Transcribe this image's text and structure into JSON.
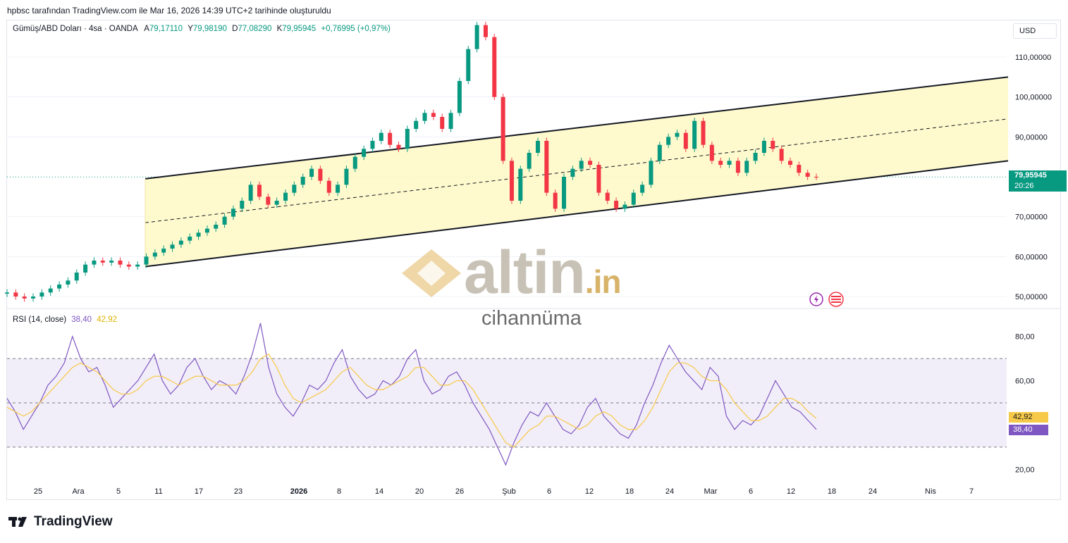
{
  "header": {
    "text": "hpbsc tarafından TradingView.com ile Mar 16, 2026 14:39 UTC+2 tarihinde oluşturuldu"
  },
  "legend": {
    "symbol": "Gümüş/ABD Doları · 4sa · OANDA",
    "a_label": "A",
    "a_val": "79,17110",
    "y_label": "Y",
    "y_val": "79,98190",
    "d_label": "D",
    "d_val": "77,08290",
    "k_label": "K",
    "k_val": "79,95945",
    "change": "+0,76995 (+0,97%)"
  },
  "currency": "USD",
  "last_price": {
    "value": "79,95945",
    "countdown": "20:26",
    "color": "#089981"
  },
  "rsi_legend": {
    "label": "RSI (14, close)",
    "rsi": "38,40",
    "ma": "42,92"
  },
  "rsi_badges": {
    "ma": "42,92",
    "rsi": "38,40",
    "ma_color": "#f7c948",
    "rsi_color": "#7e57c2"
  },
  "watermark": {
    "main": "altin",
    "suffix": ".in",
    "sub": "cihannüma"
  },
  "footer": {
    "brand": "TradingView"
  },
  "chart_data": [
    {
      "type": "candlestick",
      "title": "Gümüş/ABD Doları · 4sa · OANDA",
      "ylim": [
        47,
        119
      ],
      "y_ticks": [
        "110,00000",
        "100,00000",
        "90,00000",
        "70,00000",
        "60,00000",
        "50,00000"
      ],
      "y_tick_values": [
        110,
        100,
        90,
        70,
        60,
        50
      ],
      "x_ticks": [
        "25",
        "Ara",
        "5",
        "11",
        "17",
        "23",
        "2026",
        "8",
        "14",
        "20",
        "26",
        "Şub",
        "6",
        "12",
        "18",
        "24",
        "Mar",
        "6",
        "12",
        "18",
        "24",
        "Nis",
        "7"
      ],
      "series": [
        {
          "name": "Close (approx.)",
          "x_index": [
            0,
            6,
            12,
            18,
            24,
            30,
            36,
            42,
            48,
            54,
            60,
            66,
            72,
            78,
            84,
            90,
            96,
            102,
            108,
            114,
            120,
            126,
            132,
            138,
            144,
            150,
            156,
            162,
            168,
            174,
            180,
            186,
            192,
            198,
            204,
            210,
            216,
            222,
            228,
            234,
            240,
            246,
            252,
            258,
            264,
            270,
            276,
            282,
            288,
            294,
            300,
            306,
            312,
            318,
            324,
            330,
            336,
            342,
            348,
            354,
            360,
            366,
            372,
            378,
            384,
            390,
            396,
            402,
            408,
            414,
            420,
            426,
            432,
            438,
            444,
            450,
            456,
            462,
            468,
            474,
            480,
            486,
            492,
            498,
            504,
            510,
            516,
            522,
            528,
            534,
            540,
            546,
            552,
            558
          ],
          "values": [
            51,
            50,
            49.5,
            50,
            51,
            52,
            53,
            54,
            56,
            58,
            59,
            58.5,
            59,
            58,
            57.5,
            58,
            60,
            61,
            62,
            63,
            64,
            65,
            66,
            67,
            68,
            70,
            72,
            74,
            78,
            75,
            73,
            74,
            76,
            78,
            80,
            82,
            79,
            76,
            78,
            82,
            85,
            87,
            89,
            91,
            88,
            87,
            92,
            94,
            96,
            95,
            92,
            96,
            104,
            112,
            118,
            115,
            100,
            84,
            74,
            82,
            86,
            89,
            76,
            72,
            80,
            82,
            84,
            83,
            76,
            74,
            72,
            73,
            76,
            78,
            84,
            88,
            90,
            91,
            87,
            94,
            88,
            84,
            83,
            84,
            81,
            84,
            86,
            89,
            87,
            84,
            83,
            81,
            80,
            79.96
          ]
        }
      ],
      "channel": {
        "upper": [
          {
            "date_index": 196,
            "value": 79.5
          },
          {
            "date_index": 1420,
            "value": 105
          }
        ],
        "mid": [
          {
            "date_index": 196,
            "value": 68.5
          },
          {
            "date_index": 1420,
            "value": 94.5
          }
        ],
        "lower": [
          {
            "date_index": 196,
            "value": 57.5
          },
          {
            "date_index": 1420,
            "value": 84
          }
        ]
      },
      "last_value": 79.95945
    },
    {
      "type": "line",
      "title": "RSI (14, close)",
      "ylim": [
        15,
        92
      ],
      "y_ticks": [
        "80,00",
        "60,00",
        "20,00"
      ],
      "y_tick_values": [
        80,
        60,
        20
      ],
      "bands": {
        "upper": 70,
        "middle": 50,
        "lower": 30
      },
      "series": [
        {
          "name": "RSI",
          "values": [
            52,
            46,
            38,
            44,
            50,
            58,
            62,
            68,
            80,
            70,
            64,
            66,
            58,
            48,
            52,
            56,
            60,
            66,
            72,
            60,
            54,
            58,
            66,
            70,
            62,
            56,
            60,
            58,
            54,
            62,
            72,
            86,
            66,
            54,
            48,
            44,
            50,
            58,
            56,
            60,
            68,
            74,
            62,
            56,
            52,
            54,
            60,
            58,
            62,
            70,
            74,
            60,
            54,
            56,
            62,
            64,
            58,
            50,
            44,
            38,
            30,
            22,
            32,
            40,
            46,
            44,
            50,
            44,
            38,
            36,
            40,
            48,
            52,
            44,
            40,
            36,
            34,
            40,
            50,
            58,
            68,
            76,
            70,
            64,
            60,
            56,
            66,
            62,
            44,
            38,
            42,
            40,
            44,
            52,
            60,
            54,
            48,
            46,
            42,
            38
          ],
          "last": 38.4
        },
        {
          "name": "MA",
          "values": [
            48,
            46,
            44,
            46,
            50,
            54,
            58,
            62,
            66,
            68,
            66,
            64,
            60,
            56,
            54,
            54,
            56,
            60,
            62,
            62,
            60,
            58,
            60,
            62,
            62,
            60,
            58,
            58,
            58,
            60,
            64,
            70,
            72,
            66,
            58,
            52,
            50,
            52,
            54,
            56,
            60,
            64,
            66,
            62,
            58,
            56,
            56,
            58,
            60,
            62,
            66,
            66,
            62,
            58,
            58,
            60,
            60,
            56,
            50,
            44,
            38,
            32,
            30,
            34,
            38,
            40,
            44,
            44,
            42,
            40,
            38,
            40,
            44,
            46,
            44,
            40,
            38,
            38,
            42,
            48,
            56,
            64,
            68,
            68,
            66,
            62,
            60,
            60,
            56,
            50,
            46,
            42,
            42,
            44,
            48,
            52,
            52,
            50,
            46,
            43
          ],
          "last": 42.92
        }
      ]
    }
  ]
}
